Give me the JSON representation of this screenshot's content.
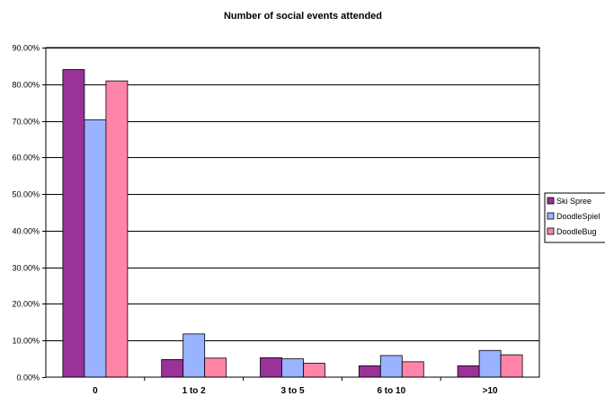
{
  "chart_data": {
    "type": "bar",
    "title": "Number of social events attended",
    "xlabel": "",
    "ylabel": "",
    "categories": [
      "0",
      "1 to 2",
      "3 to 5",
      "6 to 10",
      ">10"
    ],
    "y_tick_labels": [
      "0.00%",
      "10.00%",
      "20.00%",
      "30.00%",
      "40.00%",
      "50.00%",
      "60.00%",
      "70.00%",
      "80.00%",
      "90.00%"
    ],
    "ylim": [
      0,
      90
    ],
    "y_step": 10,
    "grid": true,
    "legend_position": "right",
    "series": [
      {
        "name": "Ski Spree",
        "color": "#993399",
        "values": [
          84.0,
          4.8,
          5.3,
          3.1,
          3.1
        ]
      },
      {
        "name": "DoodleSpiel",
        "color": "#99b3ff",
        "values": [
          70.3,
          11.8,
          5.0,
          5.9,
          7.3
        ]
      },
      {
        "name": "DoodleBug",
        "color": "#ff85a8",
        "values": [
          80.9,
          5.2,
          3.8,
          4.2,
          6.1
        ]
      }
    ]
  }
}
